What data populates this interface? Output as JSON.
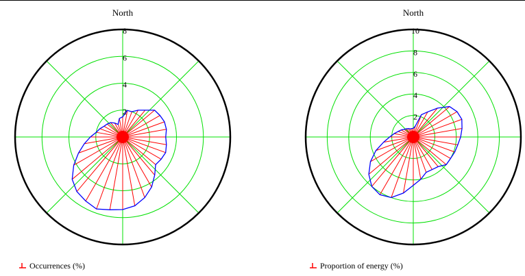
{
  "colors": {
    "outer_ring": "#000000",
    "grid": "#00e000",
    "spoke": "#ff0000",
    "outline": "#0000ff",
    "legend_marker": "#ff0000"
  },
  "chart_data": [
    {
      "type": "polar-line",
      "north_label": "North",
      "rmax": 8,
      "r_ticks": [
        2,
        4,
        6,
        8
      ],
      "r_tick_labels": [
        "2",
        "4",
        "6",
        "8"
      ],
      "series": [
        {
          "name": "Occurrences (%)",
          "angles_deg": [
            0,
            10,
            20,
            30,
            40,
            50,
            60,
            70,
            80,
            90,
            100,
            110,
            120,
            130,
            140,
            150,
            160,
            170,
            180,
            190,
            200,
            210,
            220,
            230,
            240,
            250,
            260,
            270,
            280,
            290,
            300,
            310,
            320,
            330,
            340,
            350
          ],
          "values": [
            1.5,
            2.0,
            2.0,
            2.3,
            2.6,
            3.1,
            3.2,
            3.3,
            3.3,
            3.2,
            3.3,
            3.4,
            3.3,
            3.2,
            3.7,
            4.3,
            4.8,
            5.2,
            5.4,
            5.5,
            5.7,
            5.5,
            5.3,
            4.9,
            4.2,
            3.5,
            2.9,
            2.4,
            2.0,
            1.8,
            1.6,
            1.5,
            1.4,
            1.2,
            1.0,
            1.4
          ]
        }
      ],
      "legend": "bottom-left",
      "grid": true
    },
    {
      "type": "polar-line",
      "north_label": "North",
      "rmax": 10,
      "r_ticks": [
        2,
        4,
        6,
        8,
        10
      ],
      "r_tick_labels": [
        "2",
        "4",
        "6",
        "8",
        "10"
      ],
      "series": [
        {
          "name": "Proportion of energy (%)",
          "angles_deg": [
            0,
            10,
            20,
            30,
            40,
            50,
            60,
            70,
            80,
            90,
            100,
            110,
            120,
            130,
            140,
            150,
            160,
            170,
            180,
            190,
            200,
            210,
            220,
            230,
            240,
            250,
            260,
            270,
            280,
            290,
            300,
            310,
            320,
            330,
            340,
            350
          ],
          "values": [
            0.8,
            1.0,
            2.2,
            2.7,
            3.5,
            4.4,
            4.7,
            4.8,
            4.6,
            4.4,
            4.2,
            4.1,
            4.0,
            4.0,
            3.6,
            3.5,
            3.5,
            4.0,
            4.5,
            5.3,
            6.0,
            6.2,
            6.0,
            5.4,
            4.6,
            3.7,
            2.8,
            2.2,
            1.8,
            1.5,
            1.3,
            1.1,
            1.0,
            0.9,
            0.8,
            0.8
          ]
        }
      ],
      "legend": "bottom-left",
      "grid": true
    }
  ]
}
